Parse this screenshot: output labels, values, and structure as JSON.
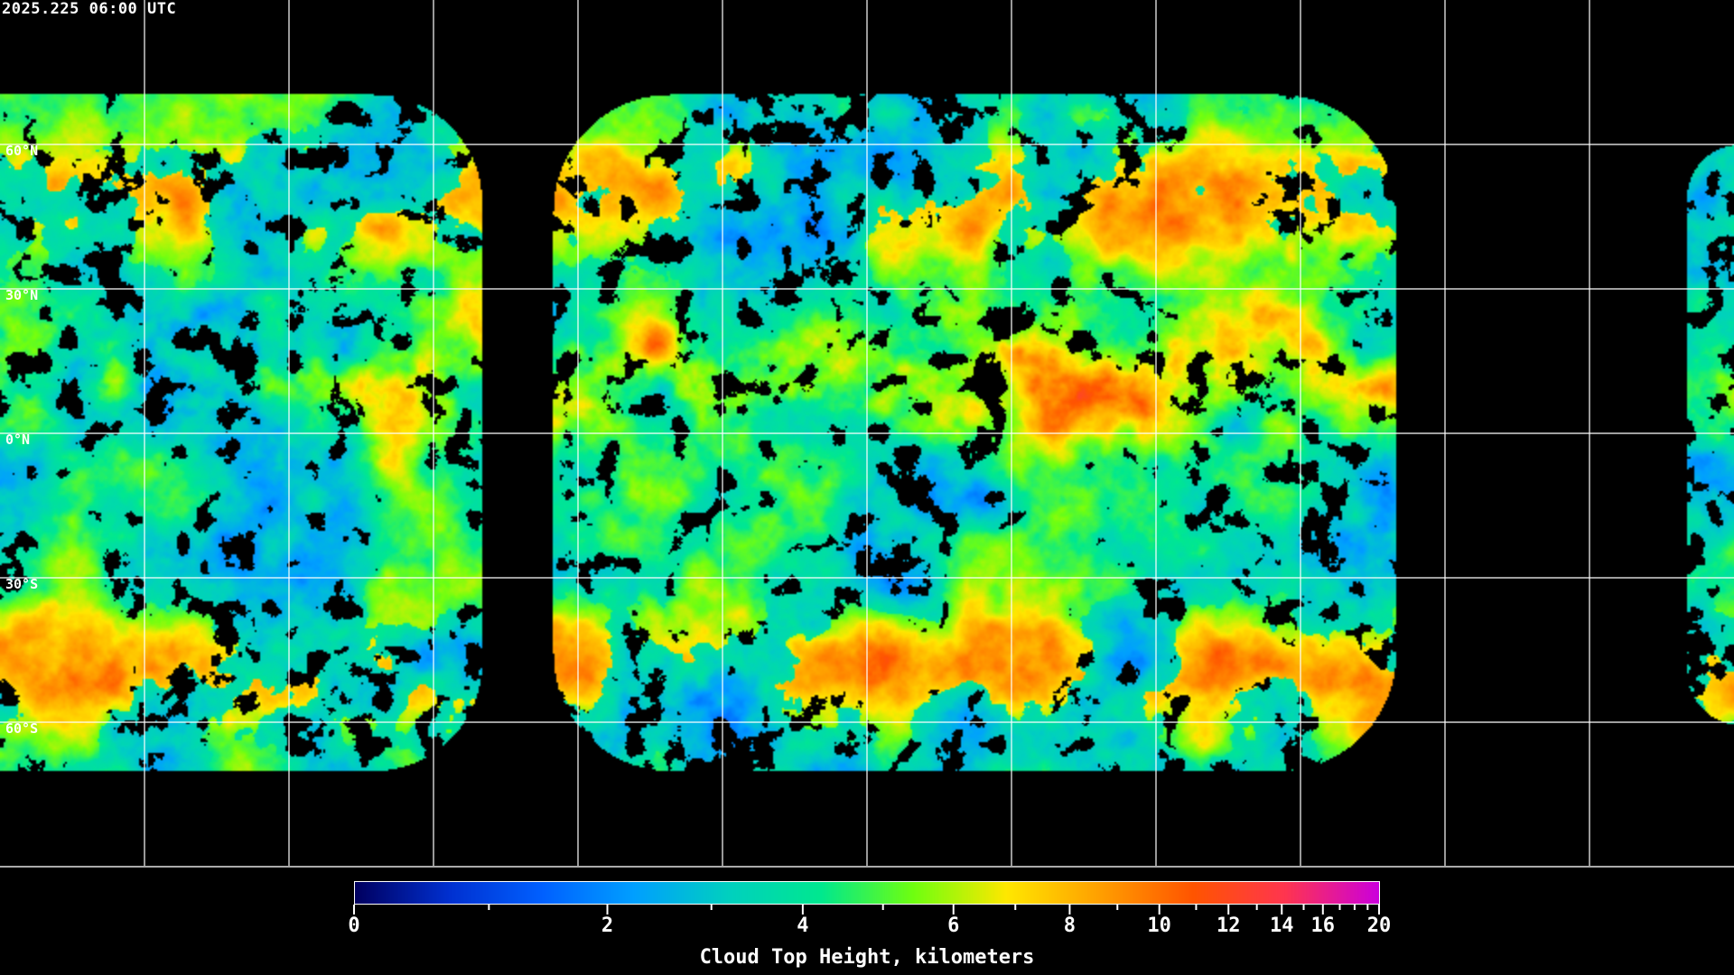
{
  "header": {
    "timestamp": "2025.225 06:00 UTC"
  },
  "map": {
    "projection": "equirectangular",
    "grid_spacing_deg": 30,
    "lat_labels": [
      "60°N",
      "30°N",
      "0°N",
      "30°S",
      "60°S"
    ],
    "lat_values": [
      60,
      30,
      0,
      -30,
      -60
    ],
    "grid_color": "#ffffff",
    "coastline_color": "#ffffff",
    "no_data_color": "#000000"
  },
  "colorbar": {
    "title": "Cloud Top Height, kilometers",
    "range": [
      0,
      20
    ],
    "tick_values": [
      0,
      2,
      4,
      6,
      8,
      10,
      12,
      14,
      16,
      20
    ],
    "tick_labels": [
      "0",
      "2",
      "4",
      "6",
      "8",
      "10",
      "12",
      "14",
      "16",
      "20"
    ],
    "minor_tick_values": [
      1,
      3,
      5,
      7,
      9,
      11,
      13,
      15,
      17,
      18,
      19
    ],
    "colormap": [
      "#000060",
      "#0030d0",
      "#0060ff",
      "#00a0ff",
      "#00d0c0",
      "#00e890",
      "#70ff10",
      "#ffe800",
      "#ffa000",
      "#ff5500",
      "#ff3550",
      "#cc00dd"
    ]
  }
}
